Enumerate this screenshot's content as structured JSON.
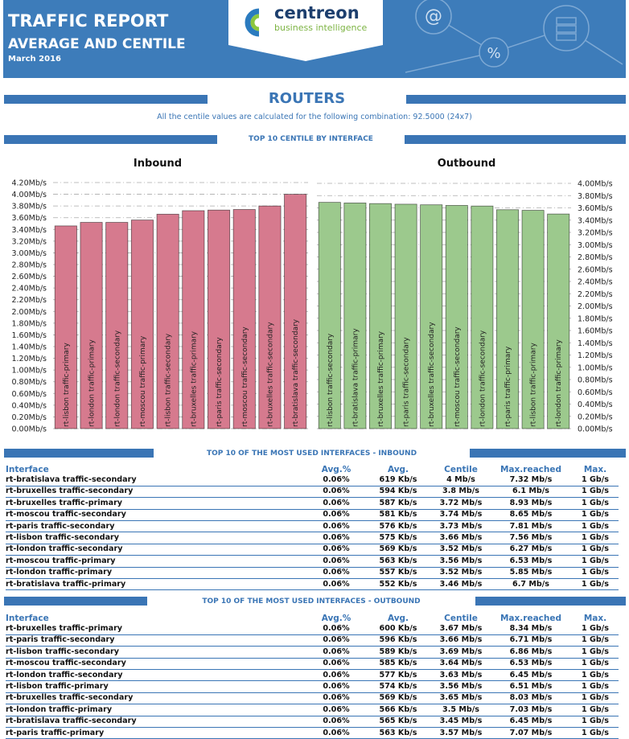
{
  "header": {
    "title": "TRAFFIC REPORT",
    "subtitle": "AVERAGE AND CENTILE",
    "date": "March 2016",
    "logo_name": "centreon",
    "logo_tagline": "business intelligence"
  },
  "section": {
    "title": "ROUTERS",
    "note": "All the centile values are calculated for the following combination: 92.5000 (24x7)",
    "chart_heading": "TOP 10 CENTILE BY INTERFACE"
  },
  "chart_data": [
    {
      "type": "bar",
      "title": "Inbound",
      "categories": [
        "rt-lisbon traffic-primary",
        "rt-london traffic-primary",
        "rt-london traffic-secondary",
        "rt-moscou traffic-primary",
        "rt-lisbon traffic-secondary",
        "rt-bruxelles traffic-primary",
        "rt-paris traffic-secondary",
        "rt-moscou traffic-secondary",
        "rt-bruxelles traffic-secondary",
        "rt-bratislava traffic-secondary"
      ],
      "values": [
        3.46,
        3.52,
        3.52,
        3.56,
        3.66,
        3.72,
        3.73,
        3.74,
        3.8,
        4.0
      ],
      "color": "#d67a8e",
      "ylim": [
        0,
        4.2
      ],
      "yticks": [
        {
          "value": 0,
          "label": "0.00Mb/s"
        },
        {
          "value": 0.2,
          "label": "0.20Mb/s"
        },
        {
          "value": 0.4,
          "label": "0.40Mb/s"
        },
        {
          "value": 0.6,
          "label": "0.60Mb/s"
        },
        {
          "value": 0.8,
          "label": "0.80Mb/s"
        },
        {
          "value": 1.0,
          "label": "1.00Mb/s"
        },
        {
          "value": 1.2,
          "label": "1.20Mb/s"
        },
        {
          "value": 1.4,
          "label": "1.40Mb/s"
        },
        {
          "value": 1.6,
          "label": "1.60Mb/s"
        },
        {
          "value": 1.8,
          "label": "1.80Mb/s"
        },
        {
          "value": 2.0,
          "label": "2.00Mb/s"
        },
        {
          "value": 2.2,
          "label": "2.20Mb/s"
        },
        {
          "value": 2.4,
          "label": "2.40Mb/s"
        },
        {
          "value": 2.6,
          "label": "2.60Mb/s"
        },
        {
          "value": 2.8,
          "label": "2.80Mb/s"
        },
        {
          "value": 3.0,
          "label": "3.00Mb/s"
        },
        {
          "value": 3.2,
          "label": "3.20Mb/s"
        },
        {
          "value": 3.4,
          "label": "3.40Mb/s"
        },
        {
          "value": 3.6,
          "label": "3.60Mb/s"
        },
        {
          "value": 3.8,
          "label": "3.80Mb/s"
        },
        {
          "value": 4.0,
          "label": "4.00Mb/s"
        },
        {
          "value": 4.2,
          "label": "4.20Mb/s"
        }
      ],
      "grid": true
    },
    {
      "type": "bar",
      "title": "Outbound",
      "categories": [
        "rt-lisbon traffic-secondary",
        "rt-bratislava traffic-primary",
        "rt-bruxelles traffic-primary",
        "rt-paris traffic-secondary",
        "rt-bruxelles traffic-secondary",
        "rt-moscou traffic-secondary",
        "rt-london traffic-secondary",
        "rt-paris traffic-primary",
        "rt-lisbon traffic-primary",
        "rt-london traffic-primary"
      ],
      "values": [
        3.69,
        3.68,
        3.67,
        3.66,
        3.65,
        3.64,
        3.63,
        3.57,
        3.56,
        3.5
      ],
      "color": "#9cc98d",
      "ylim": [
        0,
        4.0
      ],
      "yticks": [
        {
          "value": 0,
          "label": "0.00Mb/s"
        },
        {
          "value": 0.2,
          "label": "0.20Mb/s"
        },
        {
          "value": 0.4,
          "label": "0.40Mb/s"
        },
        {
          "value": 0.6,
          "label": "0.60Mb/s"
        },
        {
          "value": 0.8,
          "label": "0.80Mb/s"
        },
        {
          "value": 1.0,
          "label": "1.00Mb/s"
        },
        {
          "value": 1.2,
          "label": "1.20Mb/s"
        },
        {
          "value": 1.4,
          "label": "1.40Mb/s"
        },
        {
          "value": 1.6,
          "label": "1.60Mb/s"
        },
        {
          "value": 1.8,
          "label": "1.80Mb/s"
        },
        {
          "value": 2.0,
          "label": "2.00Mb/s"
        },
        {
          "value": 2.2,
          "label": "2.20Mb/s"
        },
        {
          "value": 2.4,
          "label": "2.40Mb/s"
        },
        {
          "value": 2.6,
          "label": "2.60Mb/s"
        },
        {
          "value": 2.8,
          "label": "2.80Mb/s"
        },
        {
          "value": 3.0,
          "label": "3.00Mb/s"
        },
        {
          "value": 3.2,
          "label": "3.20Mb/s"
        },
        {
          "value": 3.4,
          "label": "3.40Mb/s"
        },
        {
          "value": 3.6,
          "label": "3.60Mb/s"
        },
        {
          "value": 3.8,
          "label": "3.80Mb/s"
        },
        {
          "value": 4.0,
          "label": "4.00Mb/s"
        }
      ],
      "grid": true
    }
  ],
  "tables": [
    {
      "title": "TOP 10 OF THE MOST USED INTERFACES - INBOUND",
      "columns": [
        "Interface",
        "Avg.%",
        "Avg.",
        "Centile",
        "Max.reached",
        "Max."
      ],
      "rows": [
        [
          "rt-bratislava traffic-secondary",
          "0.06%",
          "619 Kb/s",
          "4 Mb/s",
          "7.32 Mb/s",
          "1 Gb/s"
        ],
        [
          "rt-bruxelles traffic-secondary",
          "0.06%",
          "594 Kb/s",
          "3.8 Mb/s",
          "6.1 Mb/s",
          "1 Gb/s"
        ],
        [
          "rt-bruxelles traffic-primary",
          "0.06%",
          "587 Kb/s",
          "3.72 Mb/s",
          "8.93 Mb/s",
          "1 Gb/s"
        ],
        [
          "rt-moscou traffic-secondary",
          "0.06%",
          "581 Kb/s",
          "3.74 Mb/s",
          "8.65 Mb/s",
          "1 Gb/s"
        ],
        [
          "rt-paris traffic-secondary",
          "0.06%",
          "576 Kb/s",
          "3.73 Mb/s",
          "7.81 Mb/s",
          "1 Gb/s"
        ],
        [
          "rt-lisbon traffic-secondary",
          "0.06%",
          "575 Kb/s",
          "3.66 Mb/s",
          "7.56 Mb/s",
          "1 Gb/s"
        ],
        [
          "rt-london traffic-secondary",
          "0.06%",
          "569 Kb/s",
          "3.52 Mb/s",
          "6.27 Mb/s",
          "1 Gb/s"
        ],
        [
          "rt-moscou traffic-primary",
          "0.06%",
          "563 Kb/s",
          "3.56 Mb/s",
          "6.53 Mb/s",
          "1 Gb/s"
        ],
        [
          "rt-london traffic-primary",
          "0.06%",
          "557 Kb/s",
          "3.52 Mb/s",
          "5.85 Mb/s",
          "1 Gb/s"
        ],
        [
          "rt-bratislava traffic-primary",
          "0.06%",
          "552 Kb/s",
          "3.46 Mb/s",
          "6.7 Mb/s",
          "1 Gb/s"
        ]
      ]
    },
    {
      "title": "TOP 10 OF THE MOST USED INTERFACES - OUTBOUND",
      "columns": [
        "Interface",
        "Avg.%",
        "Avg.",
        "Centile",
        "Max.reached",
        "Max."
      ],
      "rows": [
        [
          "rt-bruxelles traffic-primary",
          "0.06%",
          "600 Kb/s",
          "3.67 Mb/s",
          "8.34 Mb/s",
          "1 Gb/s"
        ],
        [
          "rt-paris traffic-secondary",
          "0.06%",
          "596 Kb/s",
          "3.66 Mb/s",
          "6.71 Mb/s",
          "1 Gb/s"
        ],
        [
          "rt-lisbon traffic-secondary",
          "0.06%",
          "589 Kb/s",
          "3.69 Mb/s",
          "6.86 Mb/s",
          "1 Gb/s"
        ],
        [
          "rt-moscou traffic-secondary",
          "0.06%",
          "585 Kb/s",
          "3.64 Mb/s",
          "6.53 Mb/s",
          "1 Gb/s"
        ],
        [
          "rt-london traffic-secondary",
          "0.06%",
          "577 Kb/s",
          "3.63 Mb/s",
          "6.45 Mb/s",
          "1 Gb/s"
        ],
        [
          "rt-lisbon traffic-primary",
          "0.06%",
          "574 Kb/s",
          "3.56 Mb/s",
          "6.51 Mb/s",
          "1 Gb/s"
        ],
        [
          "rt-bruxelles traffic-secondary",
          "0.06%",
          "569 Kb/s",
          "3.65 Mb/s",
          "8.03 Mb/s",
          "1 Gb/s"
        ],
        [
          "rt-london traffic-primary",
          "0.06%",
          "566 Kb/s",
          "3.5 Mb/s",
          "7.03 Mb/s",
          "1 Gb/s"
        ],
        [
          "rt-bratislava traffic-secondary",
          "0.06%",
          "565 Kb/s",
          "3.45 Mb/s",
          "6.45 Mb/s",
          "1 Gb/s"
        ],
        [
          "rt-paris traffic-primary",
          "0.06%",
          "563 Kb/s",
          "3.57 Mb/s",
          "7.07 Mb/s",
          "1 Gb/s"
        ]
      ]
    }
  ]
}
